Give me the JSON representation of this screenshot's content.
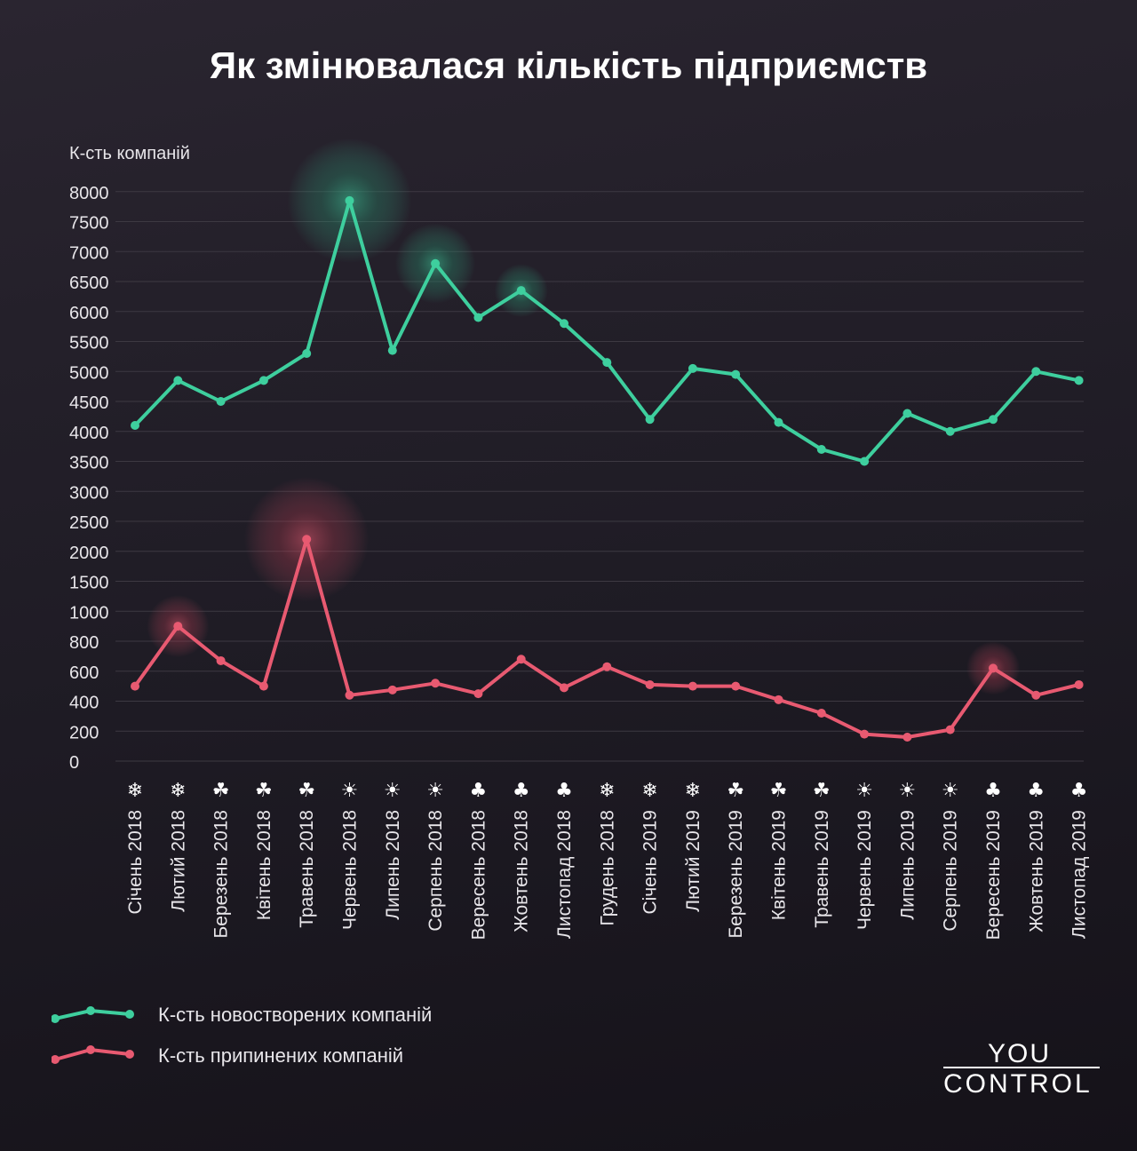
{
  "title": "Як змінювалася кількість підприємств",
  "colors": {
    "new": "#3ecf9e",
    "closed": "#e85a71",
    "grid": "#3d3942",
    "text": "#e8e6ea"
  },
  "legend": [
    {
      "label": "К-сть новостворених компаній",
      "color": "#3ecf9e"
    },
    {
      "label": "К-сть припинених компаній",
      "color": "#e85a71"
    }
  ],
  "logo": {
    "line1": "YOU",
    "line2": "CONTROL"
  },
  "chart_data": {
    "type": "line",
    "ylabel": "К-сть компаній",
    "yticks": [
      8000,
      7500,
      7000,
      6500,
      6000,
      5500,
      5000,
      4500,
      4000,
      3500,
      3000,
      2500,
      2000,
      1500,
      1000,
      800,
      600,
      400,
      200,
      0
    ],
    "y_scale": "piecewise: 0–1000 in steps of 200, 1000–8000 in steps of 500",
    "grid": true,
    "categories": [
      "Січень 2018",
      "Лютий 2018",
      "Березень 2018",
      "Квітень  2018",
      "Травень 2018",
      "Червень  2018",
      "Липень 2018",
      "Серпень 2018",
      "Вересень 2018",
      "Жовтень 2018",
      "Листопад 2018",
      "Грудень 2018",
      "Січень 2019",
      "Лютий 2019",
      "Березень 2019",
      "Квітень 2019",
      "Травень  2019",
      "Червень 2019",
      "Липень 2019",
      "Серпень  2019",
      "Вересень 2019",
      "Жовтень 2019",
      "Листопад 2019"
    ],
    "season_icons": [
      "snowflake-icon",
      "snowflake-icon",
      "flower-icon",
      "flower-icon",
      "flower-icon",
      "sun-icon",
      "sun-icon",
      "sun-icon",
      "leaf-icon",
      "leaf-icon",
      "leaf-icon",
      "snowflake-icon",
      "snowflake-icon",
      "snowflake-icon",
      "flower-icon",
      "flower-icon",
      "flower-icon",
      "sun-icon",
      "sun-icon",
      "sun-icon",
      "leaf-icon",
      "leaf-icon",
      "leaf-icon"
    ],
    "series": [
      {
        "name": "К-сть новостворених компаній",
        "color": "#3ecf9e",
        "values": [
          4100,
          4850,
          4500,
          4850,
          5300,
          7850,
          5350,
          6800,
          5900,
          6350,
          5800,
          5150,
          4200,
          5050,
          4950,
          4150,
          3700,
          3500,
          4300,
          4000,
          4200,
          5000,
          4850
        ],
        "highlights": [
          5,
          7,
          9
        ]
      },
      {
        "name": "К-сть припинених компаній",
        "color": "#e85a71",
        "values": [
          500,
          900,
          670,
          500,
          2200,
          440,
          475,
          520,
          450,
          680,
          490,
          630,
          510,
          500,
          500,
          410,
          320,
          180,
          160,
          210,
          620,
          440,
          510
        ],
        "highlights": [
          1,
          4,
          20
        ]
      }
    ]
  }
}
